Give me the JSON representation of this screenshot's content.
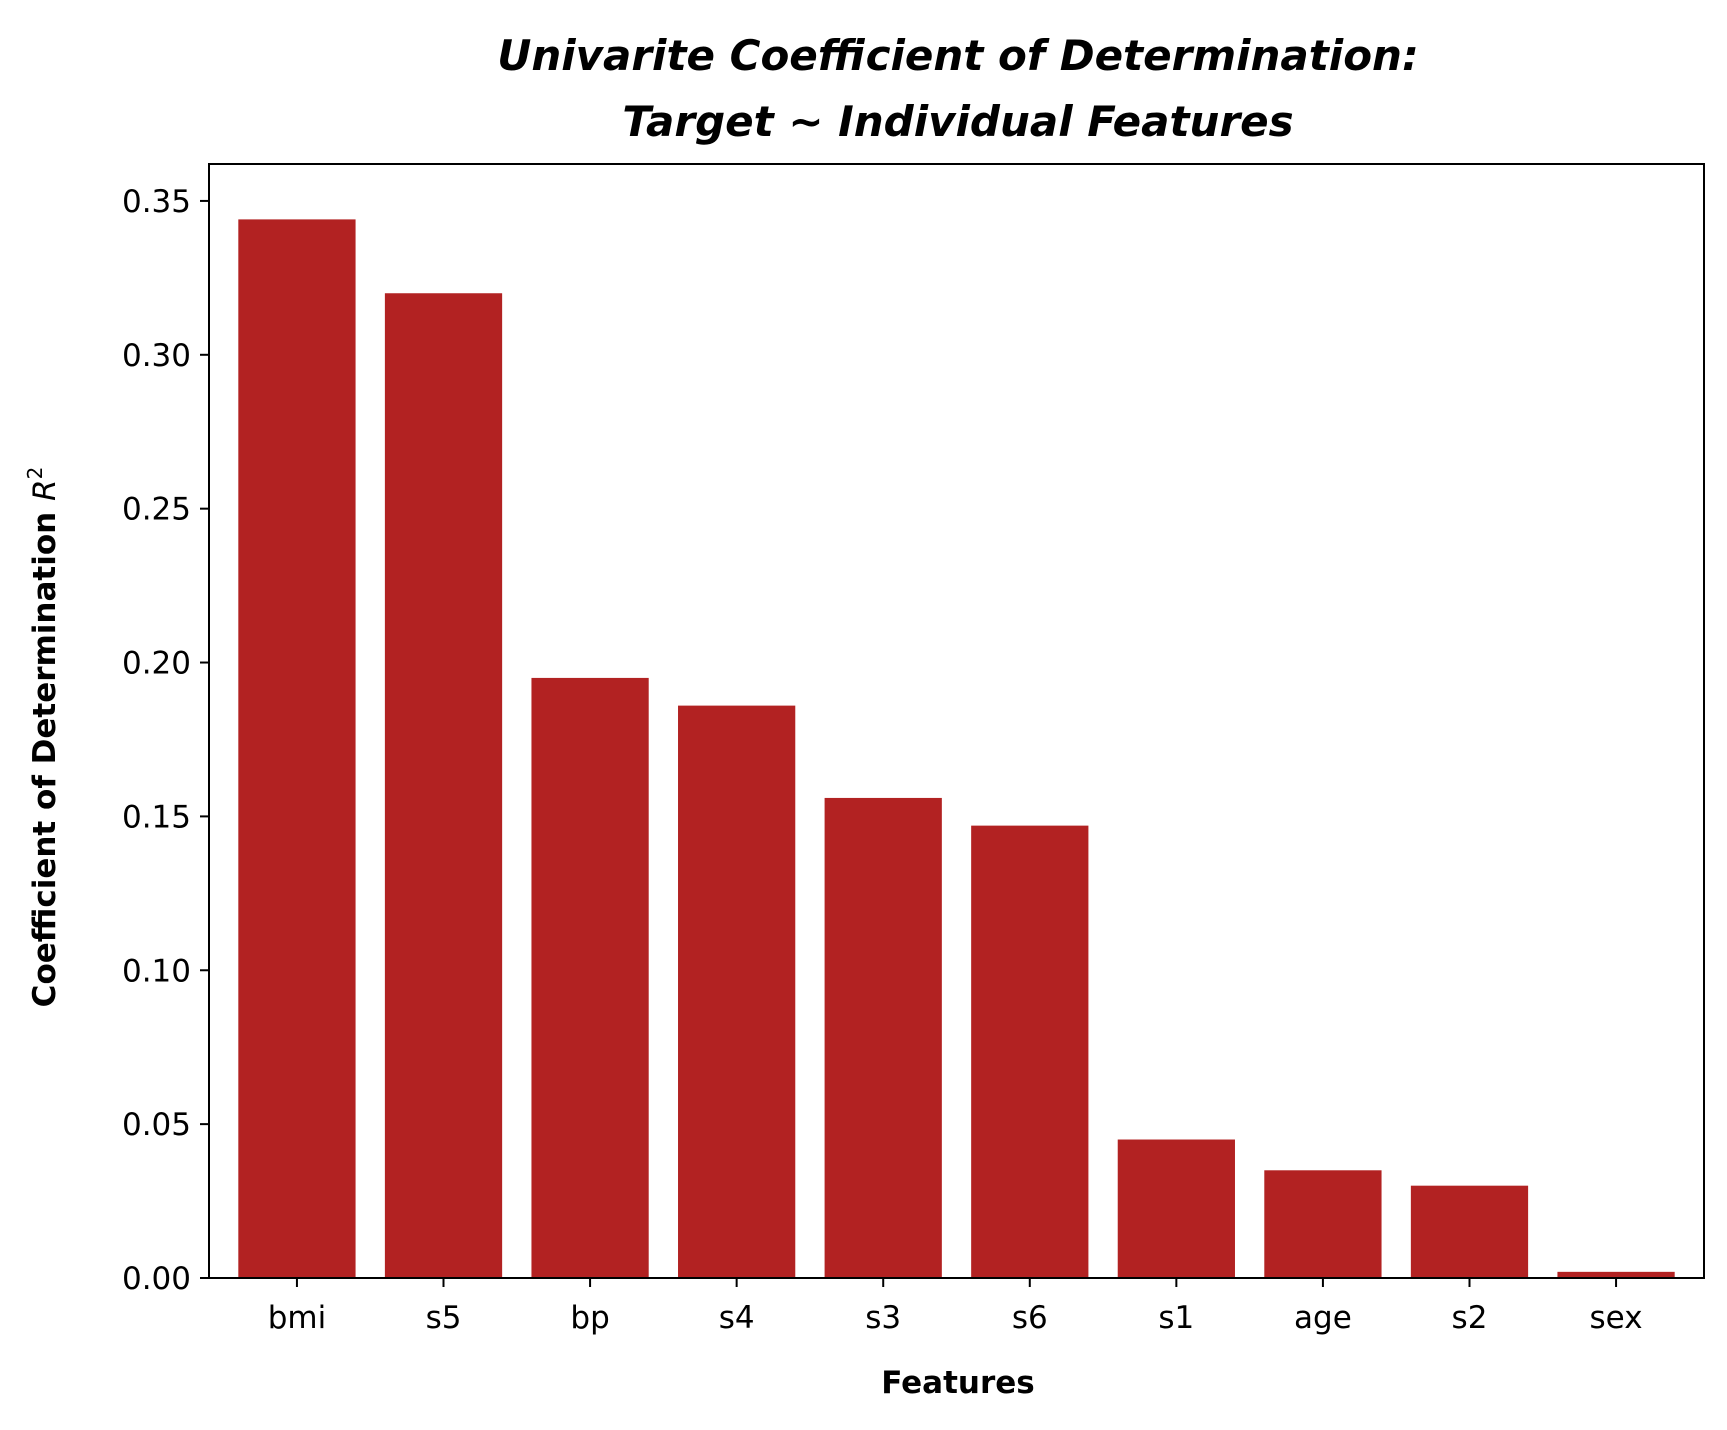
{
  "chart_data": {
    "type": "bar",
    "title": [
      "Univarite Coefficient of Determination:",
      "Target ~ Individual Features"
    ],
    "xlabel": "Features",
    "ylabel_prefix": "Coefficient of Determination ",
    "ylabel_math": "R",
    "ylabel_superscript": "2",
    "categories": [
      "bmi",
      "s5",
      "bp",
      "s4",
      "s3",
      "s6",
      "s1",
      "age",
      "s2",
      "sex"
    ],
    "values": [
      0.344,
      0.32,
      0.195,
      0.186,
      0.156,
      0.147,
      0.045,
      0.035,
      0.03,
      0.002
    ],
    "ylim": [
      0,
      0.362
    ],
    "yticks": [
      0.0,
      0.05,
      0.1,
      0.15,
      0.2,
      0.25,
      0.3,
      0.35
    ],
    "ytick_labels": [
      "0.00",
      "0.05",
      "0.10",
      "0.15",
      "0.20",
      "0.25",
      "0.30",
      "0.35"
    ],
    "bar_color": "#b22222",
    "grid": false,
    "legend": "none"
  }
}
